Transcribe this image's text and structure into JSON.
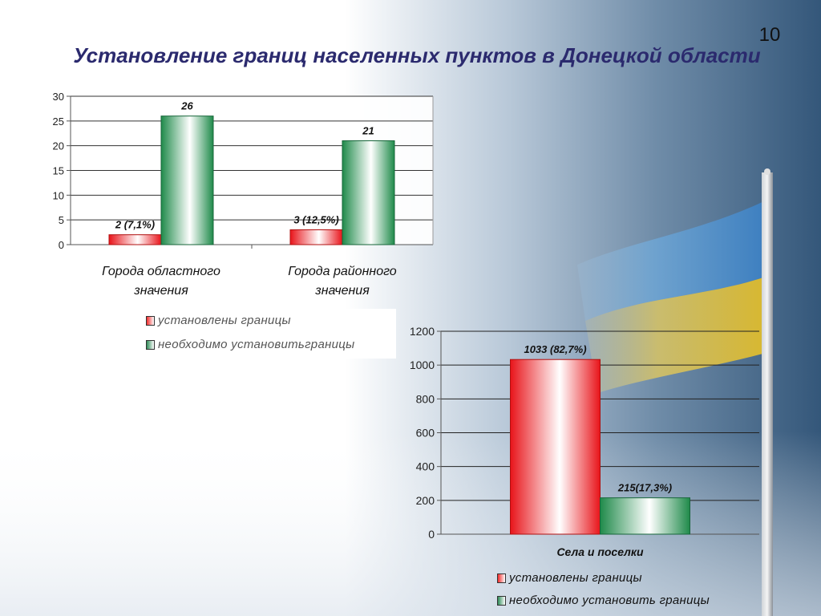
{
  "slide": {
    "page_number": "10",
    "title": "Установление границ населенных пунктов в Донецкой области"
  },
  "colors": {
    "established": "#f22a2a",
    "needed": "#2e8b57",
    "title": "#2b2a6e"
  },
  "chart_data": [
    {
      "type": "bar",
      "categories": [
        "Города областного значения",
        "Города районного значения"
      ],
      "category_lines": [
        [
          "Города областного",
          "значения"
        ],
        [
          "Города районного",
          "значения"
        ]
      ],
      "series": [
        {
          "name": "установлены границы",
          "values": [
            2,
            3
          ],
          "labels": [
            "2 (7,1%)",
            "3 (12,5%)"
          ]
        },
        {
          "name": "необходимо установитьграницы",
          "values": [
            26,
            21
          ],
          "labels": [
            "26",
            "21"
          ]
        }
      ],
      "ylim": [
        0,
        30
      ],
      "yticks": [
        0,
        5,
        10,
        15,
        20,
        25,
        30
      ],
      "grid": true,
      "legend": "bottom"
    },
    {
      "type": "bar",
      "categories": [
        "Села и поселки"
      ],
      "series": [
        {
          "name": "установлены границы",
          "values": [
            1033
          ],
          "labels": [
            "1033 (82,7%)"
          ]
        },
        {
          "name": "необходимо установить границы",
          "values": [
            215
          ],
          "labels": [
            "215(17,3%)"
          ]
        }
      ],
      "ylim": [
        0,
        1200
      ],
      "yticks": [
        0,
        200,
        400,
        600,
        800,
        1000,
        1200
      ],
      "grid": true,
      "legend": "bottom"
    }
  ]
}
